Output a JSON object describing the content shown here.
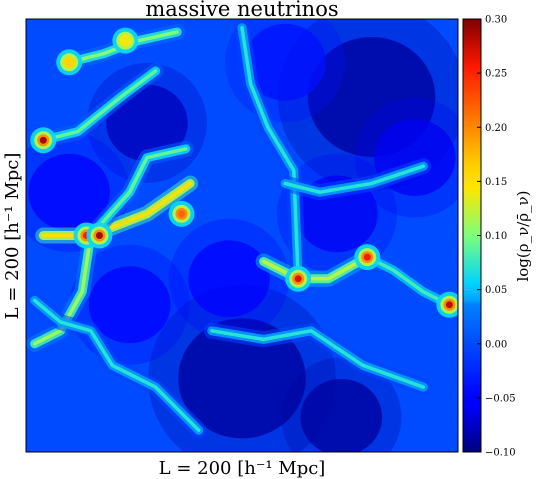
{
  "chart_data": {
    "type": "heatmap",
    "title": "massive neutrinos",
    "xlabel": "L = 200 [h⁻¹ Mpc]",
    "ylabel": "L = 200 [h⁻¹ Mpc]",
    "x_ticks": "none",
    "y_ticks": "none",
    "colormap": "jet",
    "colorbar": {
      "label": "log(ρ_ν/ρ̄_ν)",
      "range": [
        -0.1,
        0.3
      ],
      "ticks": [
        "−0.10",
        "−0.05",
        "0.00",
        "0.05",
        "0.10",
        "0.15",
        "0.20",
        "0.25",
        "0.30"
      ],
      "tick_values": [
        -0.1,
        -0.05,
        0.0,
        0.05,
        0.1,
        0.15,
        0.2,
        0.25,
        0.3
      ],
      "placement": "right"
    },
    "background_value": 0.0,
    "hotspots": [
      {
        "x": 0.04,
        "y": 0.72,
        "value": 0.29,
        "size": "small"
      },
      {
        "x": 0.14,
        "y": 0.5,
        "value": 0.26,
        "size": "small"
      },
      {
        "x": 0.17,
        "y": 0.5,
        "value": 0.29,
        "size": "small"
      },
      {
        "x": 0.63,
        "y": 0.4,
        "value": 0.27,
        "size": "small"
      },
      {
        "x": 0.79,
        "y": 0.45,
        "value": 0.26,
        "size": "small"
      },
      {
        "x": 0.98,
        "y": 0.34,
        "value": 0.28,
        "size": "small"
      },
      {
        "x": 0.36,
        "y": 0.55,
        "value": 0.22,
        "size": "small"
      },
      {
        "x": 0.1,
        "y": 0.9,
        "value": 0.16,
        "size": "small"
      },
      {
        "x": 0.23,
        "y": 0.95,
        "value": 0.14,
        "size": "small"
      }
    ],
    "filaments": [
      {
        "path": [
          [
            0.04,
            0.72
          ],
          [
            0.12,
            0.74
          ],
          [
            0.22,
            0.82
          ],
          [
            0.3,
            0.88
          ]
        ],
        "value": 0.06
      },
      {
        "path": [
          [
            0.04,
            0.5
          ],
          [
            0.15,
            0.5
          ],
          [
            0.28,
            0.55
          ],
          [
            0.38,
            0.62
          ]
        ],
        "value": 0.12
      },
      {
        "path": [
          [
            0.15,
            0.5
          ],
          [
            0.13,
            0.37
          ],
          [
            0.08,
            0.28
          ],
          [
            0.02,
            0.25
          ]
        ],
        "value": 0.08
      },
      {
        "path": [
          [
            0.15,
            0.5
          ],
          [
            0.24,
            0.6
          ],
          [
            0.28,
            0.68
          ],
          [
            0.37,
            0.7
          ]
        ],
        "value": 0.06
      },
      {
        "path": [
          [
            0.55,
            0.44
          ],
          [
            0.63,
            0.4
          ],
          [
            0.7,
            0.4
          ],
          [
            0.79,
            0.45
          ]
        ],
        "value": 0.09
      },
      {
        "path": [
          [
            0.79,
            0.45
          ],
          [
            0.85,
            0.42
          ],
          [
            0.92,
            0.37
          ],
          [
            0.98,
            0.34
          ]
        ],
        "value": 0.05
      },
      {
        "path": [
          [
            0.1,
            0.9
          ],
          [
            0.18,
            0.92
          ],
          [
            0.26,
            0.95
          ],
          [
            0.35,
            0.97
          ]
        ],
        "value": 0.07
      },
      {
        "path": [
          [
            0.5,
            0.98
          ],
          [
            0.52,
            0.85
          ],
          [
            0.56,
            0.75
          ],
          [
            0.62,
            0.65
          ],
          [
            0.63,
            0.4
          ]
        ],
        "value": 0.04
      },
      {
        "path": [
          [
            0.43,
            0.28
          ],
          [
            0.55,
            0.26
          ],
          [
            0.66,
            0.28
          ],
          [
            0.78,
            0.2
          ],
          [
            0.92,
            0.15
          ]
        ],
        "value": 0.04
      },
      {
        "path": [
          [
            0.6,
            0.62
          ],
          [
            0.68,
            0.6
          ],
          [
            0.8,
            0.62
          ],
          [
            0.92,
            0.66
          ]
        ],
        "value": 0.04
      },
      {
        "path": [
          [
            0.02,
            0.35
          ],
          [
            0.08,
            0.3
          ],
          [
            0.15,
            0.28
          ],
          [
            0.2,
            0.2
          ],
          [
            0.3,
            0.15
          ],
          [
            0.4,
            0.05
          ]
        ],
        "value": 0.04
      }
    ],
    "voids": [
      {
        "x": 0.8,
        "y": 0.82,
        "value": -0.09,
        "size": "large"
      },
      {
        "x": 0.28,
        "y": 0.76,
        "value": -0.08,
        "size": "medium"
      },
      {
        "x": 0.5,
        "y": 0.17,
        "value": -0.09,
        "size": "large"
      },
      {
        "x": 0.73,
        "y": 0.08,
        "value": -0.09,
        "size": "medium"
      },
      {
        "x": 0.72,
        "y": 0.55,
        "value": -0.06,
        "size": "medium"
      },
      {
        "x": 0.9,
        "y": 0.68,
        "value": -0.06,
        "size": "medium"
      },
      {
        "x": 0.47,
        "y": 0.4,
        "value": -0.05,
        "size": "medium"
      },
      {
        "x": 0.24,
        "y": 0.34,
        "value": -0.05,
        "size": "medium"
      },
      {
        "x": 0.1,
        "y": 0.6,
        "value": -0.05,
        "size": "medium"
      },
      {
        "x": 0.6,
        "y": 0.9,
        "value": -0.04,
        "size": "medium"
      }
    ]
  }
}
